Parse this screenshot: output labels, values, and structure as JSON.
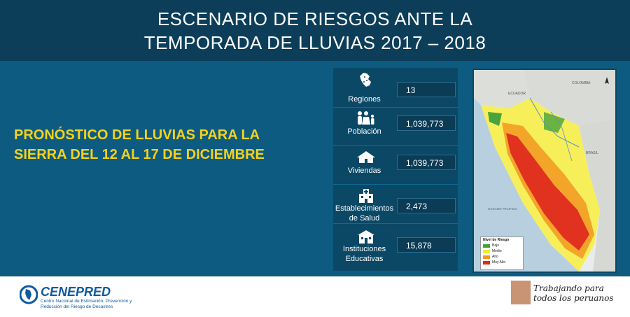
{
  "header": {
    "title_line1": "ESCENARIO DE RIESGOS ANTE LA",
    "title_line2": "TEMPORADA DE LLUVIAS 2017 – 2018"
  },
  "subtitle": {
    "line1": "PRONÓSTICO DE LLUVIAS PARA LA",
    "line2": "SIERRA DEL 12 AL 17 DE DICIEMBRE"
  },
  "stats": [
    {
      "label_line1": "Regiones",
      "label_line2": "",
      "value": "13",
      "icon": "peru-map-icon"
    },
    {
      "label_line1": "Población",
      "label_line2": "",
      "value": "1,039,773",
      "icon": "family-icon"
    },
    {
      "label_line1": "Viviendas",
      "label_line2": "",
      "value": "1,039,773",
      "icon": "house-icon"
    },
    {
      "label_line1": "Establecimientos",
      "label_line2": "de Salud",
      "value": "2,473",
      "icon": "hospital-icon"
    },
    {
      "label_line1": "Instituciones",
      "label_line2": "Educativas",
      "value": "15,878",
      "icon": "school-icon"
    }
  ],
  "map": {
    "labels": {
      "ecuador": "ECUADOR",
      "colombia": "COLOMBIA",
      "brasil": "BRASIL",
      "ocean": "OCEANO PACIFICO"
    },
    "legend_title": "Nivel de Riesgo",
    "legend": [
      {
        "label": "Bajo",
        "color": "#3aa833"
      },
      {
        "label": "Medio",
        "color": "#f2ec2a"
      },
      {
        "label": "Alto",
        "color": "#f29a1f"
      },
      {
        "label": "Muy Alto",
        "color": "#e02a1c"
      }
    ]
  },
  "footer": {
    "org_name": "CENEPRED",
    "org_sub": "Centro Nacional de Estimación, Prevención y Reducción del Riesgo de Desastres",
    "slogan_line1": "Trabajando para",
    "slogan_line2": "todos los peruanos"
  },
  "colors": {
    "accent": "#f4d21b",
    "header_bg": "#0c3e5a",
    "main_bg": "#0d5b80"
  }
}
